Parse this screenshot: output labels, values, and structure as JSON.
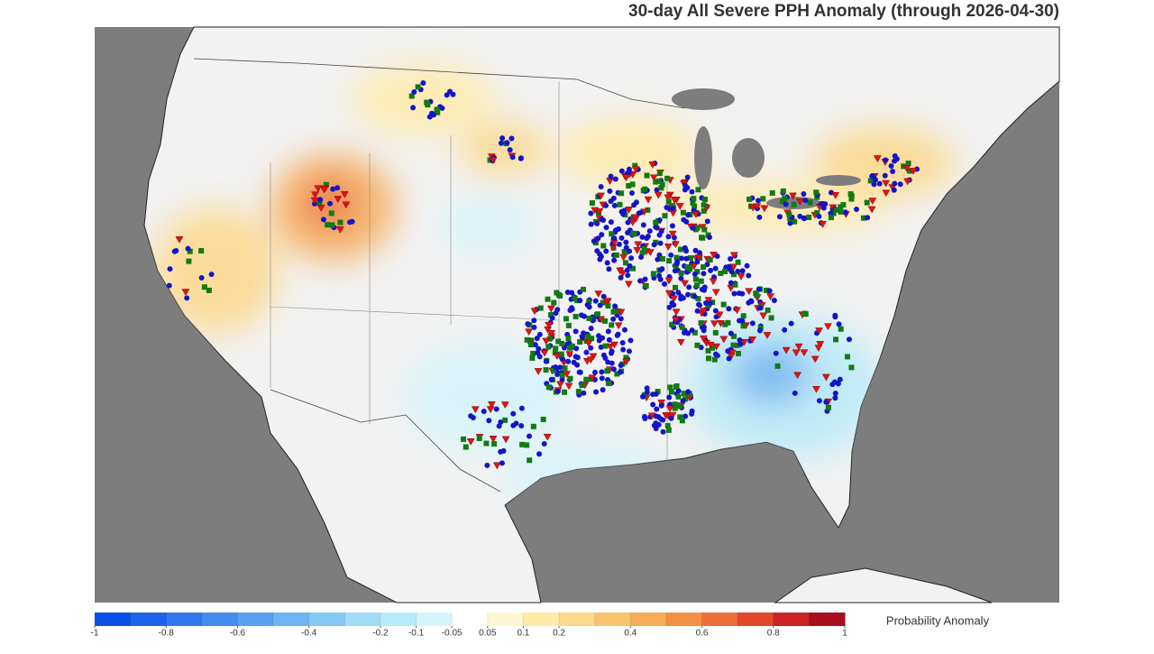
{
  "title": "30-day All Severe PPH Anomaly (through 2026-04-30)",
  "colorbar": {
    "label": "Probability Anomaly",
    "levels": [
      -1,
      -0.9,
      -0.8,
      -0.7,
      -0.6,
      -0.5,
      -0.4,
      -0.3,
      -0.2,
      -0.1,
      -0.05,
      0.05,
      0.1,
      0.2,
      0.3,
      0.4,
      0.5,
      0.6,
      0.7,
      0.8,
      0.9,
      1
    ],
    "colors": [
      "#0a50e6",
      "#1e64ea",
      "#3278ec",
      "#468cee",
      "#5aa0f0",
      "#6eb4f2",
      "#86c8f4",
      "#a0dcf6",
      "#b8eaf8",
      "#d4f4fa",
      "#ffffff",
      "#fff6d2",
      "#ffeaa8",
      "#fcd88a",
      "#f9c46e",
      "#f6ac58",
      "#f29046",
      "#ec6e38",
      "#e0482c",
      "#cc2424",
      "#a8101e"
    ],
    "ticks": [
      -1,
      -0.8,
      -0.6,
      -0.4,
      -0.2,
      -0.1,
      -0.05,
      0.05,
      0.1,
      0.2,
      0.4,
      0.6,
      0.8,
      1
    ]
  }
}
